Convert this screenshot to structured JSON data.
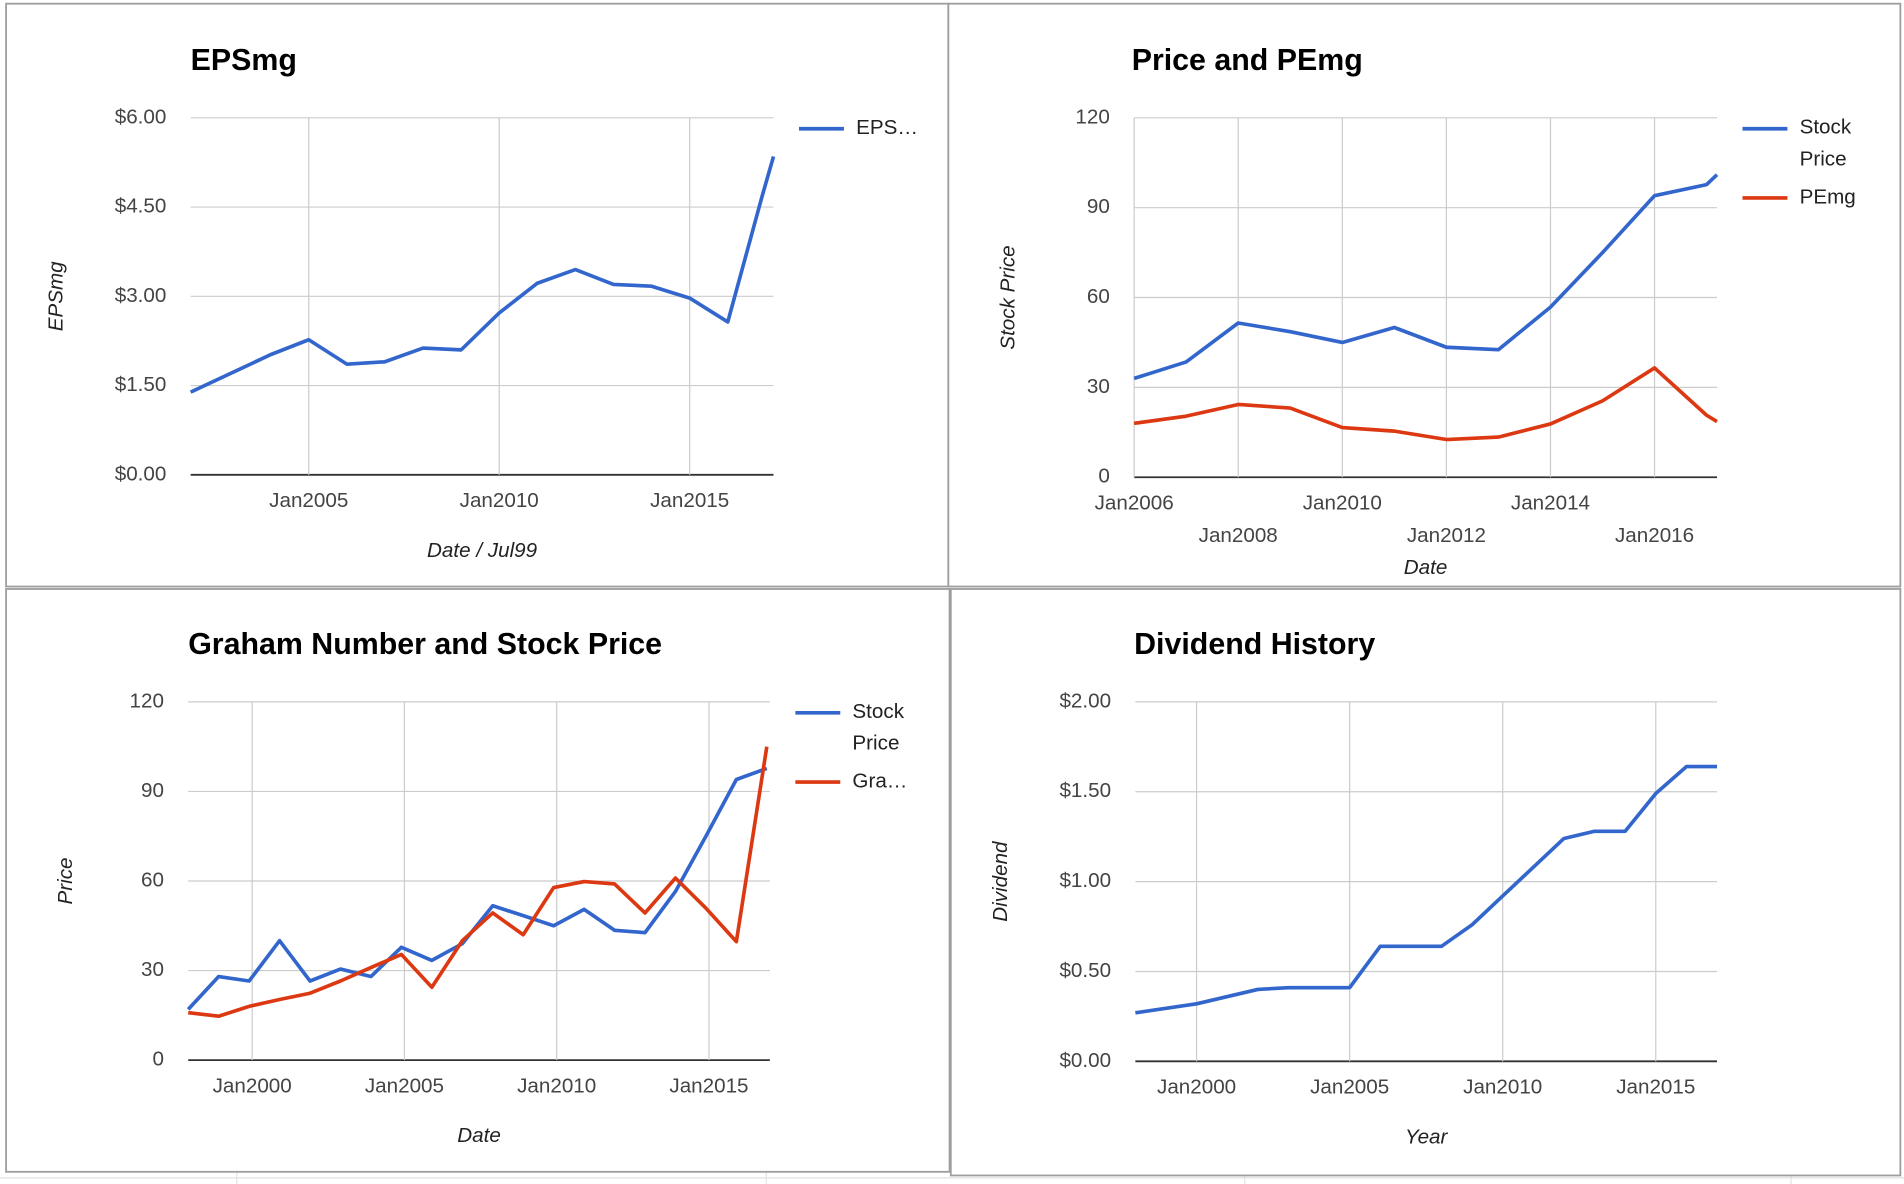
{
  "chart_data": [
    {
      "type": "line",
      "title": "EPSmg",
      "x_label": "Date / Jul99",
      "y_label": "EPSmg",
      "x": [
        2001.9,
        2004,
        2005,
        2006,
        2007,
        2008,
        2009,
        2010,
        2011,
        2012,
        2013,
        2014,
        2015,
        2016,
        2016.9,
        2017.2
      ],
      "series": [
        {
          "name": "EPS…",
          "color": "#3366cc",
          "values": [
            1.39,
            2.02,
            2.27,
            1.86,
            1.9,
            2.13,
            2.1,
            2.72,
            3.22,
            3.45,
            3.2,
            3.17,
            2.97,
            2.57,
            4.68,
            5.35
          ]
        }
      ],
      "xlim": [
        2001.9,
        2017.2
      ],
      "xticks": [
        {
          "value": 2005,
          "label": "Jan2005"
        },
        {
          "value": 2010,
          "label": "Jan2010"
        },
        {
          "value": 2015,
          "label": "Jan2015"
        }
      ],
      "ylim": [
        0,
        6
      ],
      "yticks": [
        {
          "value": 0,
          "label": "$0.00"
        },
        {
          "value": 1.5,
          "label": "$1.50"
        },
        {
          "value": 3,
          "label": "$3.00"
        },
        {
          "value": 4.5,
          "label": "$4.50"
        },
        {
          "value": 6,
          "label": "$6.00"
        }
      ],
      "grid": true,
      "legend": "right"
    },
    {
      "type": "line",
      "title": "Price and PEmg",
      "x_label": "Date",
      "y_label": "Stock Price",
      "x": [
        2006,
        2007,
        2008,
        2009,
        2010,
        2011,
        2012,
        2013,
        2014,
        2015,
        2016,
        2017,
        2017.2
      ],
      "series": [
        {
          "name": "Stock Price",
          "color": "#3366cc",
          "values": [
            33,
            38.5,
            51.5,
            48.6,
            45,
            50,
            43.4,
            42.6,
            56.8,
            75,
            94,
            97.7,
            101
          ]
        },
        {
          "name": "PEmg",
          "color": "#dc3912",
          "values": [
            18,
            20.4,
            24.3,
            23.1,
            16.6,
            15.4,
            12.6,
            13.4,
            17.8,
            25.5,
            36.5,
            20.7,
            18.6
          ]
        }
      ],
      "xlim": [
        2006,
        2017.2
      ],
      "xticks": [
        {
          "value": 2006,
          "label": "Jan2006"
        },
        {
          "value": 2008,
          "label": "Jan2008"
        },
        {
          "value": 2010,
          "label": "Jan2010"
        },
        {
          "value": 2012,
          "label": "Jan2012"
        },
        {
          "value": 2014,
          "label": "Jan2014"
        },
        {
          "value": 2016,
          "label": "Jan2016"
        }
      ],
      "ylim": [
        0,
        120
      ],
      "yticks": [
        0,
        30,
        60,
        90,
        120
      ],
      "grid": true,
      "legend": "right"
    },
    {
      "type": "line",
      "title": "Graham Number and Stock Price",
      "x_label": "Date",
      "y_label": "Price",
      "x": [
        1997.9,
        1998.9,
        1999.9,
        2000.9,
        2001.9,
        2002.9,
        2003.9,
        2004.9,
        2005.9,
        2006.9,
        2007.9,
        2008.9,
        2009.9,
        2010.9,
        2011.9,
        2012.9,
        2013.9,
        2014.9,
        2015.9,
        2016.9
      ],
      "series": [
        {
          "name": "Stock Price",
          "color": "#3366cc",
          "values": [
            17,
            28,
            26.5,
            40,
            26.5,
            30.5,
            28,
            37.8,
            33.4,
            39,
            51.7,
            48.4,
            45,
            50.5,
            43.5,
            42.7,
            56.5,
            75,
            94,
            97.7
          ]
        },
        {
          "name": "Gra…",
          "color": "#dc3912",
          "values": [
            15.9,
            14.7,
            18,
            20.3,
            22.4,
            26.5,
            31,
            35.4,
            24.4,
            40,
            49.3,
            42,
            57.8,
            59.8,
            59,
            49.3,
            61,
            50.9,
            39.7,
            105
          ]
        }
      ],
      "xlim": [
        1997.9,
        2017
      ],
      "xticks": [
        {
          "value": 2000,
          "label": "Jan2000"
        },
        {
          "value": 2005,
          "label": "Jan2005"
        },
        {
          "value": 2010,
          "label": "Jan2010"
        },
        {
          "value": 2015,
          "label": "Jan2015"
        }
      ],
      "ylim": [
        0,
        120
      ],
      "yticks": [
        0,
        30,
        60,
        90,
        120
      ],
      "grid": true,
      "legend": "right"
    },
    {
      "type": "line",
      "title": "Dividend History",
      "x_label": "Year",
      "y_label": "Dividend",
      "x": [
        1998,
        2000,
        2002,
        2003,
        2005,
        2006,
        2008,
        2009,
        2010,
        2012,
        2013,
        2014,
        2015,
        2016,
        2017
      ],
      "series": [
        {
          "name": "Dividend",
          "color": "#3366cc",
          "values": [
            0.27,
            0.32,
            0.4,
            0.41,
            0.41,
            0.64,
            0.64,
            0.76,
            0.92,
            1.24,
            1.28,
            1.28,
            1.49,
            1.64,
            1.64
          ]
        }
      ],
      "xlim": [
        1998,
        2017
      ],
      "xticks": [
        {
          "value": 2000,
          "label": "Jan2000"
        },
        {
          "value": 2005,
          "label": "Jan2005"
        },
        {
          "value": 2010,
          "label": "Jan2010"
        },
        {
          "value": 2015,
          "label": "Jan2015"
        }
      ],
      "ylim": [
        0,
        2
      ],
      "yticks": [
        {
          "value": 0,
          "label": "$0.00"
        },
        {
          "value": 0.5,
          "label": "$0.50"
        },
        {
          "value": 1,
          "label": "$1.00"
        },
        {
          "value": 1.5,
          "label": "$1.50"
        },
        {
          "value": 2,
          "label": "$2.00"
        }
      ],
      "grid": true,
      "legend": "none"
    }
  ]
}
